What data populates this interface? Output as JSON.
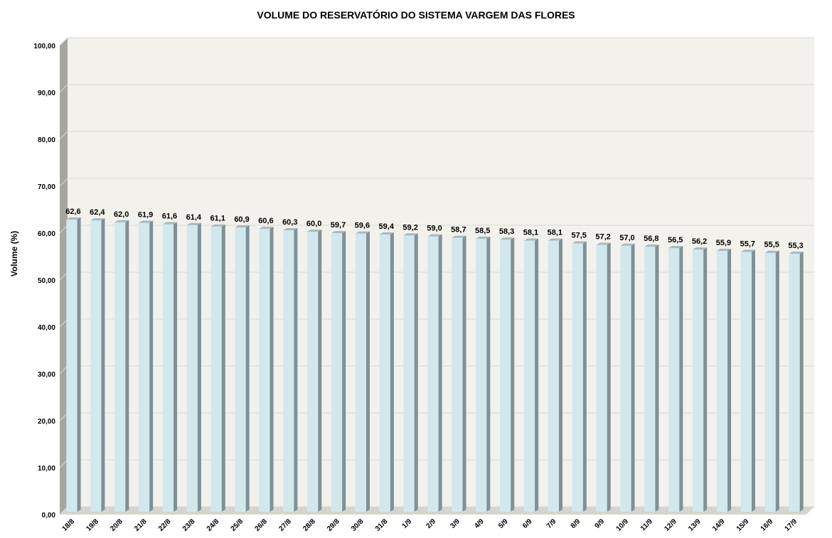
{
  "chart_data": {
    "type": "bar",
    "title": "VOLUME DO RESERVATÓRIO DO SISTEMA VARGEM DAS FLORES",
    "xlabel": "",
    "ylabel": "Volume (%)",
    "ylim": [
      0,
      100
    ],
    "y_ticks": [
      "0,00",
      "10,00",
      "20,00",
      "30,00",
      "40,00",
      "50,00",
      "60,00",
      "70,00",
      "80,00",
      "90,00",
      "100,00"
    ],
    "grid": true,
    "categories": [
      "18/8",
      "19/8",
      "20/8",
      "21/8",
      "22/8",
      "23/8",
      "24/8",
      "25/8",
      "26/8",
      "27/8",
      "28/8",
      "29/8",
      "30/8",
      "31/8",
      "1/9",
      "2/9",
      "3/9",
      "4/9",
      "5/9",
      "6/9",
      "7/9",
      "8/9",
      "9/9",
      "10/9",
      "11/9",
      "12/9",
      "13/9",
      "14/9",
      "15/9",
      "16/9",
      "17/9"
    ],
    "values": [
      62.6,
      62.4,
      62.0,
      61.9,
      61.6,
      61.4,
      61.1,
      60.9,
      60.6,
      60.3,
      60.0,
      59.7,
      59.6,
      59.4,
      59.2,
      59.0,
      58.7,
      58.5,
      58.3,
      58.1,
      58.1,
      57.5,
      57.2,
      57.0,
      56.8,
      56.5,
      56.2,
      55.9,
      55.7,
      55.5,
      55.3
    ],
    "data_labels": [
      "62,6",
      "62,4",
      "62,0",
      "61,9",
      "61,6",
      "61,4",
      "61,1",
      "60,9",
      "60,6",
      "60,3",
      "60,0",
      "59,7",
      "59,6",
      "59,4",
      "59,2",
      "59,0",
      "58,7",
      "58,5",
      "58,3",
      "58,1",
      "58,1",
      "57,5",
      "57,2",
      "57,0",
      "56,8",
      "56,5",
      "56,2",
      "55,9",
      "55,7",
      "55,5",
      "55,3"
    ],
    "colors": {
      "bar_front": "#d2e8ef",
      "bar_side": "#7f9196",
      "bar_top": "#a7b9bd",
      "plot_bg": "#f3f1ec",
      "wall_side": "#a6a6a0",
      "floor": "#d6d4cc",
      "grid": "#d9d9d9"
    }
  }
}
